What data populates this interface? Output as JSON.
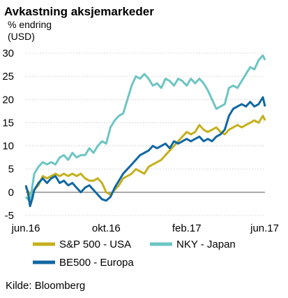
{
  "chart_data": {
    "type": "line",
    "title": "Avkastning aksjemarkeder",
    "ylabel_line1": "% endring",
    "ylabel_line2": "(USD)",
    "ylim": [
      -5,
      30
    ],
    "yticks": [
      -5,
      0,
      5,
      10,
      15,
      20,
      25,
      30
    ],
    "x_ticks": [
      "jun.16",
      "okt.16",
      "feb.17",
      "jun.17"
    ],
    "grid": true,
    "legend_position": "bottom",
    "source": "Kilde: Bloomberg",
    "series": [
      {
        "name": "S&P 500 - USA",
        "color": "#c5b01d",
        "points": [
          [
            0,
            1
          ],
          [
            2,
            -0.5
          ],
          [
            4,
            0.5
          ],
          [
            6,
            1.5
          ],
          [
            8,
            3.5
          ],
          [
            10,
            3
          ],
          [
            12,
            3.5
          ],
          [
            14,
            4
          ],
          [
            16,
            3.5
          ],
          [
            18,
            4
          ],
          [
            20,
            3.5
          ],
          [
            22,
            4
          ],
          [
            24,
            3.5
          ],
          [
            26,
            4
          ],
          [
            28,
            3
          ],
          [
            30,
            2.5
          ],
          [
            32,
            2.5
          ],
          [
            34,
            3
          ],
          [
            36,
            2
          ],
          [
            38,
            0
          ],
          [
            40,
            -0.5
          ],
          [
            42,
            0.5
          ],
          [
            44,
            1.5
          ],
          [
            46,
            3
          ],
          [
            48,
            3.5
          ],
          [
            50,
            4
          ],
          [
            52,
            5
          ],
          [
            54,
            4.5
          ],
          [
            56,
            4
          ],
          [
            58,
            5.5
          ],
          [
            60,
            6
          ],
          [
            62,
            6.5
          ],
          [
            64,
            7
          ],
          [
            66,
            8
          ],
          [
            68,
            9
          ],
          [
            70,
            10
          ],
          [
            72,
            11
          ],
          [
            74,
            12
          ],
          [
            76,
            13
          ],
          [
            78,
            12.5
          ],
          [
            80,
            13
          ],
          [
            82,
            14.5
          ],
          [
            84,
            13.5
          ],
          [
            86,
            13
          ],
          [
            88,
            13.5
          ],
          [
            90,
            14
          ],
          [
            92,
            13
          ],
          [
            94,
            12.5
          ],
          [
            96,
            13.5
          ],
          [
            98,
            14
          ],
          [
            100,
            14.5
          ],
          [
            102,
            14
          ],
          [
            104,
            14.5
          ],
          [
            106,
            15
          ],
          [
            108,
            15.5
          ],
          [
            110,
            15
          ],
          [
            112,
            16.5
          ],
          [
            113,
            15.5
          ]
        ]
      },
      {
        "name": "NKY - Japan",
        "color": "#6cc5c3",
        "points": [
          [
            0,
            -1
          ],
          [
            2,
            -2
          ],
          [
            4,
            4
          ],
          [
            6,
            5.5
          ],
          [
            8,
            6.5
          ],
          [
            10,
            6
          ],
          [
            12,
            6.5
          ],
          [
            14,
            6
          ],
          [
            16,
            7.5
          ],
          [
            18,
            8
          ],
          [
            20,
            7
          ],
          [
            22,
            8.5
          ],
          [
            24,
            7.5
          ],
          [
            26,
            8
          ],
          [
            28,
            8
          ],
          [
            30,
            9.5
          ],
          [
            32,
            8.5
          ],
          [
            34,
            10
          ],
          [
            36,
            11
          ],
          [
            38,
            10.5
          ],
          [
            40,
            14
          ],
          [
            42,
            15.5
          ],
          [
            44,
            16.5
          ],
          [
            46,
            17
          ],
          [
            48,
            20
          ],
          [
            50,
            23
          ],
          [
            52,
            25
          ],
          [
            54,
            24.5
          ],
          [
            56,
            25.5
          ],
          [
            58,
            24.5
          ],
          [
            60,
            23
          ],
          [
            62,
            23.5
          ],
          [
            64,
            22.5
          ],
          [
            66,
            24.5
          ],
          [
            68,
            24
          ],
          [
            70,
            23
          ],
          [
            72,
            24.5
          ],
          [
            74,
            24
          ],
          [
            76,
            23
          ],
          [
            78,
            24.5
          ],
          [
            80,
            23.5
          ],
          [
            82,
            24.5
          ],
          [
            84,
            23.5
          ],
          [
            86,
            22
          ],
          [
            88,
            20
          ],
          [
            90,
            18
          ],
          [
            92,
            18.5
          ],
          [
            94,
            19
          ],
          [
            96,
            22.5
          ],
          [
            98,
            23
          ],
          [
            100,
            22.5
          ],
          [
            102,
            24
          ],
          [
            104,
            25.5
          ],
          [
            106,
            27
          ],
          [
            108,
            26.5
          ],
          [
            110,
            28.5
          ],
          [
            112,
            29.5
          ],
          [
            113,
            28.5
          ]
        ]
      },
      {
        "name": "BE500 - Europa",
        "color": "#1167a3",
        "points": [
          [
            0,
            1.5
          ],
          [
            1,
            0
          ],
          [
            2,
            -3
          ],
          [
            3,
            -1.5
          ],
          [
            4,
            0.5
          ],
          [
            6,
            2
          ],
          [
            8,
            3
          ],
          [
            10,
            2
          ],
          [
            12,
            3
          ],
          [
            14,
            3.5
          ],
          [
            16,
            2
          ],
          [
            18,
            2.5
          ],
          [
            20,
            1.5
          ],
          [
            22,
            2
          ],
          [
            24,
            1
          ],
          [
            26,
            0
          ],
          [
            28,
            1
          ],
          [
            30,
            1.5
          ],
          [
            32,
            0.5
          ],
          [
            34,
            -0.5
          ],
          [
            36,
            -1.5
          ],
          [
            38,
            -1.8
          ],
          [
            40,
            -1
          ],
          [
            42,
            1
          ],
          [
            44,
            2.5
          ],
          [
            46,
            4
          ],
          [
            48,
            5
          ],
          [
            50,
            6
          ],
          [
            52,
            7
          ],
          [
            54,
            8
          ],
          [
            56,
            8.5
          ],
          [
            58,
            9
          ],
          [
            60,
            10
          ],
          [
            62,
            9.5
          ],
          [
            64,
            10
          ],
          [
            66,
            10.5
          ],
          [
            68,
            9.5
          ],
          [
            70,
            11
          ],
          [
            72,
            10.5
          ],
          [
            74,
            11
          ],
          [
            76,
            11.5
          ],
          [
            78,
            11
          ],
          [
            80,
            11.5
          ],
          [
            82,
            12
          ],
          [
            84,
            11
          ],
          [
            86,
            11.5
          ],
          [
            88,
            11
          ],
          [
            90,
            12
          ],
          [
            92,
            12.5
          ],
          [
            94,
            13.5
          ],
          [
            96,
            16.5
          ],
          [
            98,
            18
          ],
          [
            100,
            18.5
          ],
          [
            102,
            19
          ],
          [
            104,
            18.5
          ],
          [
            106,
            19.5
          ],
          [
            108,
            18.5
          ],
          [
            110,
            19
          ],
          [
            112,
            20.5
          ],
          [
            113,
            18.5
          ]
        ]
      }
    ]
  }
}
